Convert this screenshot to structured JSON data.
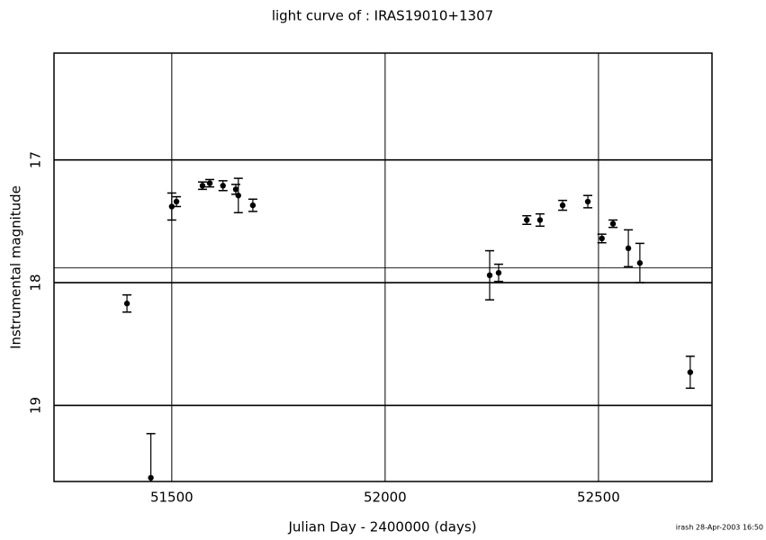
{
  "chart_data": {
    "type": "scatter",
    "title": "light curve of : IRAS19010+1307",
    "x_label": "Julian Day - 2400000 (days)",
    "y_label": "Instrumental magnitude",
    "footer": "irash 28-Apr-2003 16:50",
    "x": [
      51395,
      51451,
      51500,
      51511,
      51572,
      51589,
      51620,
      51650,
      51656,
      51690,
      52245,
      52266,
      52332,
      52363,
      52416,
      52475,
      52508,
      52534,
      52570,
      52597,
      52715
    ],
    "values": [
      18.17,
      19.59,
      17.38,
      17.34,
      17.21,
      17.19,
      17.21,
      17.24,
      17.29,
      17.37,
      17.94,
      17.92,
      17.49,
      17.49,
      17.37,
      17.34,
      17.64,
      17.52,
      17.72,
      17.84,
      18.73
    ],
    "errors": [
      0.07,
      0.36,
      0.11,
      0.04,
      0.03,
      0.03,
      0.04,
      0.04,
      0.14,
      0.05,
      0.2,
      0.07,
      0.035,
      0.05,
      0.04,
      0.05,
      0.035,
      0.03,
      0.15,
      0.16,
      0.13
    ],
    "color": "#000000",
    "xlim": [
      51224,
      52766
    ],
    "xticks": [
      51500,
      52000,
      52500
    ],
    "ylim": [
      19.62,
      16.13
    ],
    "yticks": [
      17,
      18,
      19
    ],
    "y_inverted": true,
    "hline": 17.88,
    "grid": true
  }
}
